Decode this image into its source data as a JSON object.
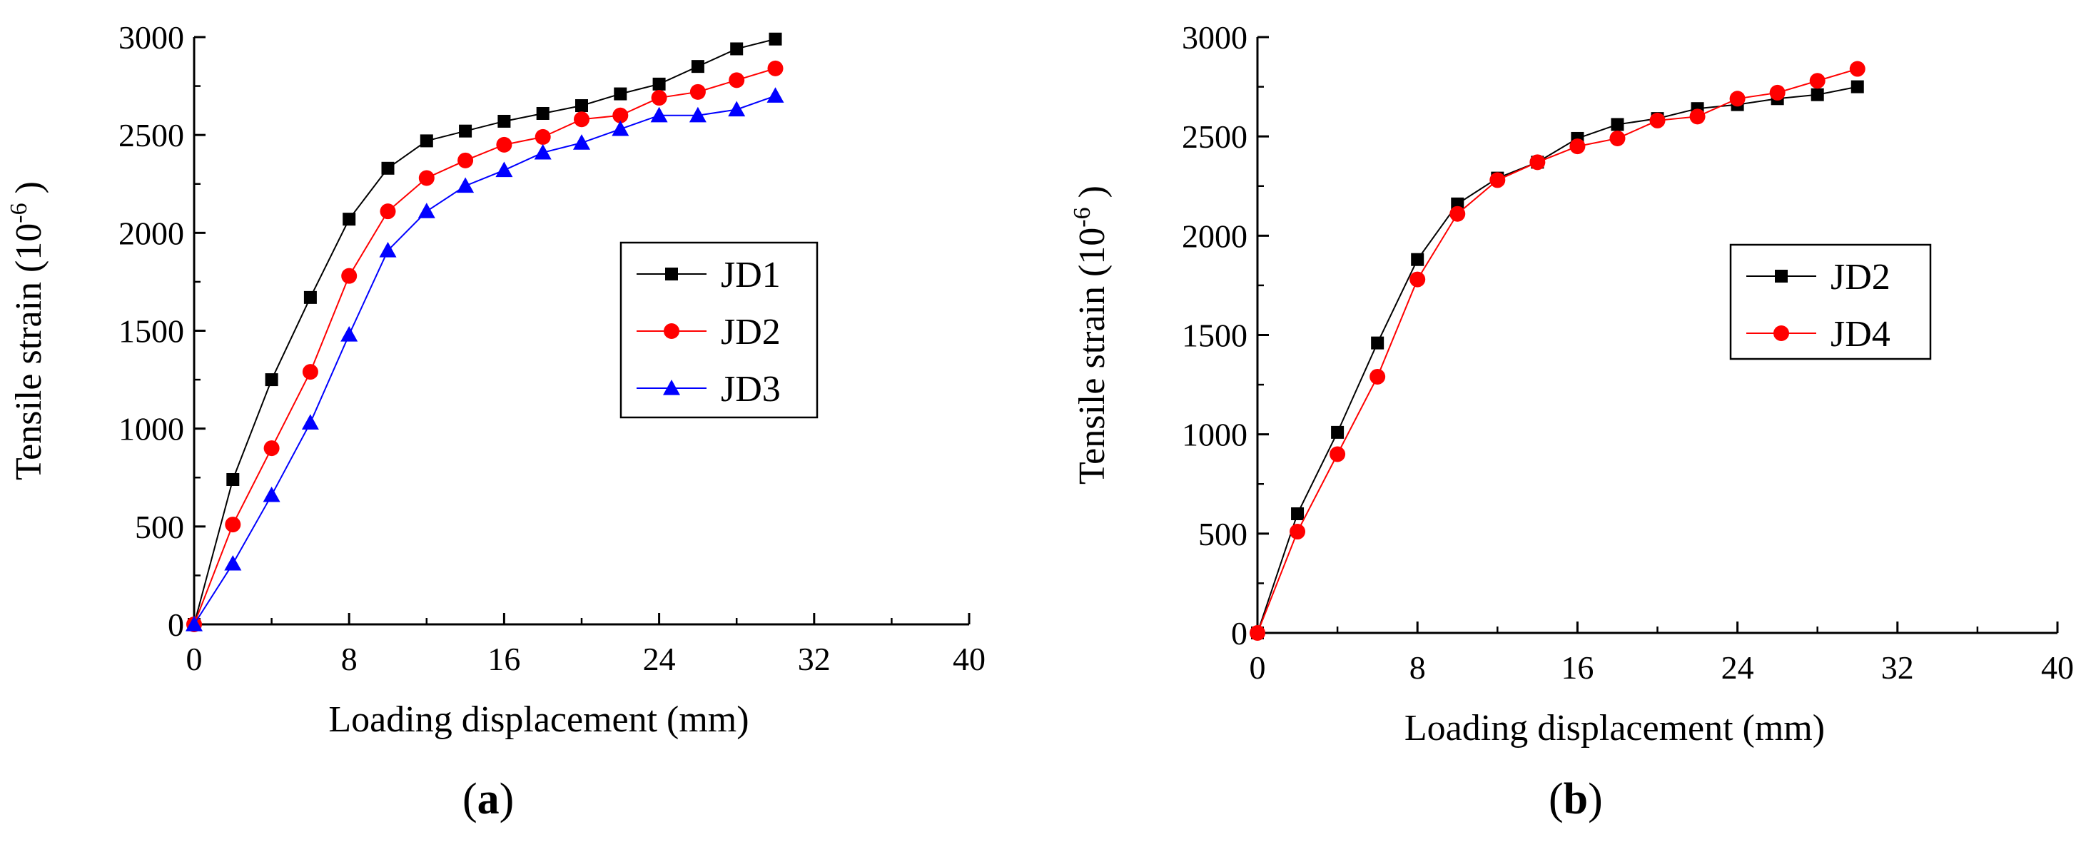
{
  "panels": [
    {
      "label_open": "(",
      "label_letter": "a",
      "label_close": ")"
    },
    {
      "label_open": "(",
      "label_letter": "b",
      "label_close": ")"
    }
  ],
  "chart_data": [
    {
      "type": "line",
      "xlabel": "Loading displacement (mm)",
      "ylabel_main": "Tensile strain (10",
      "ylabel_sup": "-6",
      "ylabel_end": " )",
      "xlim": [
        0,
        40
      ],
      "ylim": [
        0,
        3000
      ],
      "xticks": [
        0,
        8,
        16,
        24,
        32,
        40
      ],
      "yticks": [
        0,
        500,
        1000,
        1500,
        2000,
        2500,
        3000
      ],
      "grid": false,
      "legend_position": "middle-right",
      "x": [
        0,
        2,
        4,
        6,
        8,
        10,
        12,
        14,
        16,
        18,
        20,
        22,
        24,
        26,
        28,
        30
      ],
      "series": [
        {
          "name": "JD1",
          "color": "#000000",
          "marker": "square",
          "values": [
            0,
            740,
            1250,
            1670,
            2070,
            2330,
            2470,
            2520,
            2570,
            2610,
            2650,
            2710,
            2760,
            2850,
            2940,
            2990
          ]
        },
        {
          "name": "JD2",
          "color": "#ff0000",
          "marker": "circle",
          "values": [
            0,
            510,
            900,
            1290,
            1780,
            2110,
            2280,
            2370,
            2450,
            2490,
            2580,
            2600,
            2690,
            2720,
            2780,
            2840
          ]
        },
        {
          "name": "JD3",
          "color": "#0000ff",
          "marker": "triangle",
          "values": [
            0,
            310,
            660,
            1030,
            1480,
            1910,
            2110,
            2240,
            2320,
            2410,
            2460,
            2530,
            2600,
            2600,
            2630,
            2700
          ]
        }
      ]
    },
    {
      "type": "line",
      "xlabel": "Loading displacement (mm)",
      "ylabel_main": "Tensile strain (10",
      "ylabel_sup": "-6",
      "ylabel_end": " )",
      "xlim": [
        0,
        40
      ],
      "ylim": [
        0,
        3000
      ],
      "xticks": [
        0,
        8,
        16,
        24,
        32,
        40
      ],
      "yticks": [
        0,
        500,
        1000,
        1500,
        2000,
        2500,
        3000
      ],
      "grid": false,
      "legend_position": "middle-right",
      "x": [
        0,
        2,
        4,
        6,
        8,
        10,
        12,
        14,
        16,
        18,
        20,
        22,
        24,
        26,
        28,
        30
      ],
      "series": [
        {
          "name": "JD2",
          "color": "#000000",
          "marker": "square",
          "values": [
            0,
            600,
            1010,
            1460,
            1880,
            2160,
            2290,
            2370,
            2490,
            2560,
            2590,
            2640,
            2660,
            2690,
            2710,
            2750
          ]
        },
        {
          "name": "JD4",
          "color": "#ff0000",
          "marker": "circle",
          "values": [
            0,
            510,
            900,
            1290,
            1780,
            2110,
            2280,
            2370,
            2450,
            2490,
            2580,
            2600,
            2690,
            2720,
            2780,
            2840
          ]
        }
      ]
    }
  ]
}
